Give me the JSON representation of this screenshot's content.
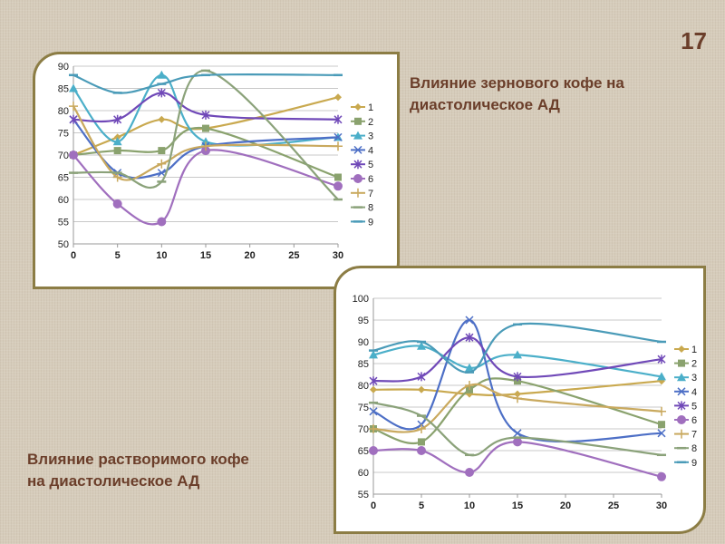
{
  "slide_number": "17",
  "titles": {
    "ground": "Влияние зернового кофе на диастолическое АД",
    "ground_line1": "Влияние зернового кофе на",
    "ground_line2": "диастолическое АД",
    "instant_line1": "Влияние растворимого кофе",
    "instant_line2": "на диастолическое АД"
  },
  "chart_data": [
    {
      "type": "line",
      "title": "Влияние зернового кофе на диастолическое АД",
      "x": [
        0,
        5,
        10,
        15,
        30
      ],
      "xticks": [
        0,
        5,
        10,
        15,
        20,
        25,
        30
      ],
      "xlim": [
        0,
        30
      ],
      "ylim": [
        50,
        90
      ],
      "yticks": [
        50,
        55,
        60,
        65,
        70,
        75,
        80,
        85,
        90
      ],
      "grid": true,
      "legend": "right",
      "series": [
        {
          "name": "1",
          "values": [
            70,
            74,
            78,
            76,
            83
          ],
          "color": "#c9a94f",
          "marker": "diamond"
        },
        {
          "name": "2",
          "values": [
            70,
            71,
            71,
            76,
            65
          ],
          "color": "#8aa26e",
          "marker": "square"
        },
        {
          "name": "3",
          "values": [
            85,
            73,
            88,
            73,
            74
          ],
          "color": "#4bafc9",
          "marker": "triangle"
        },
        {
          "name": "4",
          "values": [
            78,
            66,
            66,
            72,
            74
          ],
          "color": "#4d6fc6",
          "marker": "x"
        },
        {
          "name": "5",
          "values": [
            78,
            78,
            84,
            79,
            78
          ],
          "color": "#7049b8",
          "marker": "asterisk"
        },
        {
          "name": "6",
          "values": [
            70,
            59,
            55,
            71,
            63
          ],
          "color": "#a06fbe",
          "marker": "circle"
        },
        {
          "name": "7",
          "values": [
            81,
            65,
            68,
            72,
            72
          ],
          "color": "#c9a95e",
          "marker": "plus"
        },
        {
          "name": "8",
          "values": [
            66,
            66,
            64,
            89,
            60
          ],
          "color": "#8ba27a",
          "marker": "dash"
        },
        {
          "name": "9",
          "values": [
            88,
            84,
            86,
            88,
            88
          ],
          "color": "#4a9bb8",
          "marker": "dash"
        }
      ]
    },
    {
      "type": "line",
      "title": "Влияние растворимого кофе на диастолическое АД",
      "x": [
        0,
        5,
        10,
        15,
        30
      ],
      "xticks": [
        0,
        5,
        10,
        15,
        20,
        25,
        30
      ],
      "xlim": [
        0,
        30
      ],
      "ylim": [
        55,
        100
      ],
      "yticks": [
        55,
        60,
        65,
        70,
        75,
        80,
        85,
        90,
        95,
        100
      ],
      "grid": true,
      "legend": "right",
      "series": [
        {
          "name": "1",
          "values": [
            79,
            79,
            78,
            78,
            81
          ],
          "color": "#c9a94f",
          "marker": "diamond"
        },
        {
          "name": "2",
          "values": [
            70,
            67,
            79,
            81,
            71
          ],
          "color": "#8aa26e",
          "marker": "square"
        },
        {
          "name": "3",
          "values": [
            87,
            89,
            84,
            87,
            82
          ],
          "color": "#4bafc9",
          "marker": "triangle"
        },
        {
          "name": "4",
          "values": [
            74,
            71,
            95,
            69,
            69
          ],
          "color": "#4d6fc6",
          "marker": "x"
        },
        {
          "name": "5",
          "values": [
            81,
            82,
            91,
            82,
            86
          ],
          "color": "#7049b8",
          "marker": "asterisk"
        },
        {
          "name": "6",
          "values": [
            65,
            65,
            60,
            67,
            59
          ],
          "color": "#a06fbe",
          "marker": "circle"
        },
        {
          "name": "7",
          "values": [
            70,
            70,
            80,
            77,
            74
          ],
          "color": "#c9a95e",
          "marker": "plus"
        },
        {
          "name": "8",
          "values": [
            76,
            73,
            64,
            68,
            64
          ],
          "color": "#8ba27a",
          "marker": "dash"
        },
        {
          "name": "9",
          "values": [
            88,
            90,
            83,
            94,
            90
          ],
          "color": "#4a9bb8",
          "marker": "dash"
        }
      ]
    }
  ]
}
